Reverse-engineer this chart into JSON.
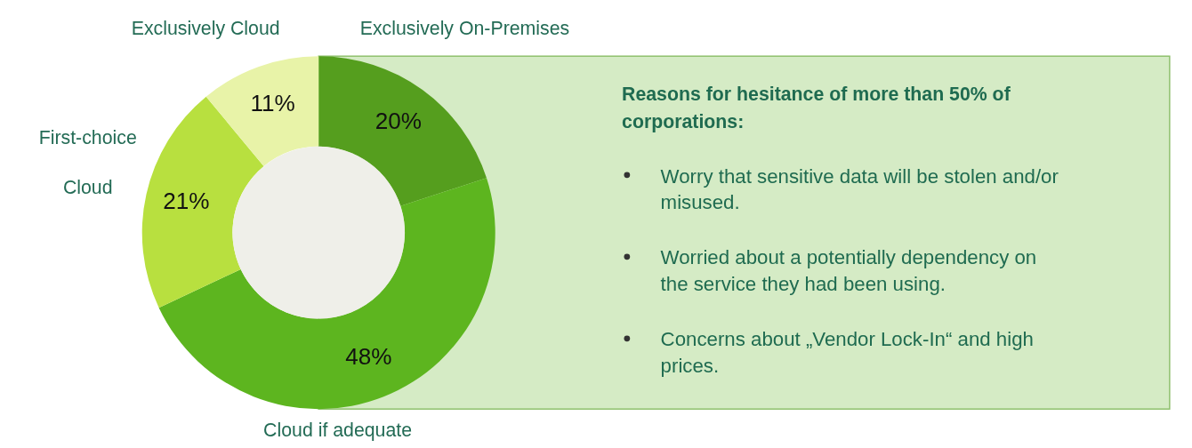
{
  "chart_data": {
    "type": "donut",
    "categories": [
      "Exclusively On-Premises",
      "Cloud if adequate",
      "First-choice Cloud",
      "Exclusively Cloud"
    ],
    "values": [
      20,
      48,
      21,
      11
    ],
    "colors": [
      "#559e1e",
      "#5db51f",
      "#b8e03f",
      "#e8f3a8"
    ],
    "value_labels": [
      "20%",
      "48%",
      "21%",
      "11%"
    ],
    "annotations": [
      "Reasons for hesitance of more than 50% of corporations:",
      "Worry that sensitive data will be stolen and/or misused.",
      "Worried about a potentially dependency on the service they had been using.",
      "Concerns about „Vendor Lock-In“ and high prices."
    ]
  }
}
